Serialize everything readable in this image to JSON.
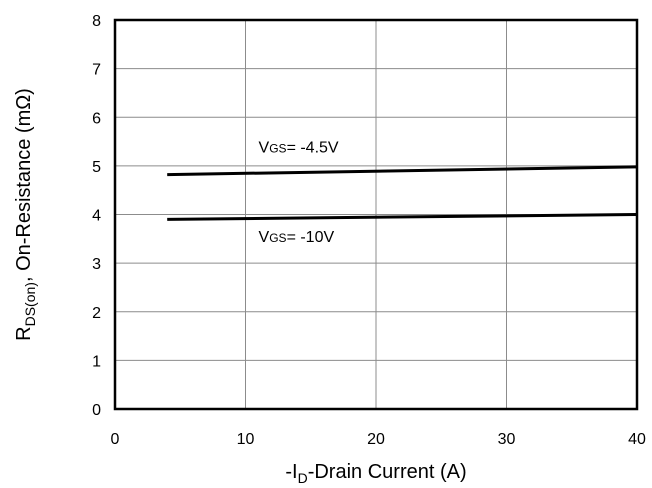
{
  "chart_data": {
    "type": "line",
    "xlabel": {
      "prefix": "-I",
      "sub": "D",
      "suffix": "-Drain Current (A)"
    },
    "ylabel": {
      "prefix": "R",
      "sub": "DS(on)",
      "suffix": ", On-Resistance (mΩ)"
    },
    "xlim": [
      0,
      40
    ],
    "ylim": [
      0,
      8
    ],
    "x_ticks": [
      "0",
      "10",
      "20",
      "30",
      "40"
    ],
    "y_ticks": [
      "0",
      "1",
      "2",
      "3",
      "4",
      "5",
      "6",
      "7",
      "8"
    ],
    "grid": true,
    "series": [
      {
        "name": "VGS= -4.5V",
        "x": [
          4,
          40
        ],
        "y": [
          4.82,
          4.98
        ]
      },
      {
        "name": "VGS= -10V",
        "x": [
          4,
          40
        ],
        "y": [
          3.9,
          4.0
        ]
      }
    ],
    "annotations": [
      {
        "main": "V",
        "sub": "GS",
        "rest": "= -4.5V",
        "x": 11,
        "y": 5.27
      },
      {
        "main": "V",
        "sub": "GS",
        "rest": "= -10V",
        "x": 11,
        "y": 3.43
      }
    ]
  }
}
